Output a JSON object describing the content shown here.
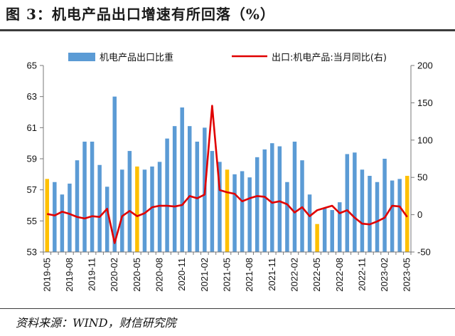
{
  "title": "图 3：机电产品出口增速有所回落（%）",
  "source": "资料来源：WIND，财信研究院",
  "colors": {
    "bar": "#5b9bd5",
    "highlight": "#ffc000",
    "line": "#e00000"
  },
  "chart_data": {
    "type": "bar+line",
    "categories": [
      "2019-05",
      "2019-06",
      "2019-07",
      "2019-08",
      "2019-09",
      "2019-10",
      "2019-11",
      "2019-12",
      "2020-01",
      "2020-02",
      "2020-03",
      "2020-04",
      "2020-05",
      "2020-06",
      "2020-07",
      "2020-08",
      "2020-09",
      "2020-10",
      "2020-11",
      "2020-12",
      "2021-01",
      "2021-02",
      "2021-03",
      "2021-04",
      "2021-05",
      "2021-06",
      "2021-07",
      "2021-08",
      "2021-09",
      "2021-10",
      "2021-11",
      "2021-12",
      "2022-01",
      "2022-02",
      "2022-03",
      "2022-04",
      "2022-05",
      "2022-06",
      "2022-07",
      "2022-08",
      "2022-09",
      "2022-10",
      "2022-11",
      "2022-12",
      "2023-01",
      "2023-02",
      "2023-03",
      "2023-04",
      "2023-05"
    ],
    "x_tick_labels": [
      "2019-05",
      "2019-08",
      "2019-11",
      "2020-02",
      "2020-05",
      "2020-08",
      "2020-11",
      "2021-02",
      "2021-05",
      "2021-08",
      "2021-11",
      "2022-02",
      "2022-05",
      "2022-08",
      "2022-11",
      "2023-02",
      "2023-05"
    ],
    "x_tick_every": 3,
    "highlight_categories": [
      "2019-05",
      "2020-05",
      "2021-05",
      "2022-05",
      "2023-05"
    ],
    "series": [
      {
        "name": "机电产品出口比重",
        "type": "bar",
        "axis": "left",
        "values": [
          57.7,
          57.5,
          56.7,
          57.4,
          58.9,
          60.1,
          60.1,
          58.6,
          57.2,
          63.0,
          58.3,
          59.5,
          58.5,
          58.3,
          58.5,
          58.8,
          60.3,
          61.1,
          62.3,
          61.1,
          60.1,
          61.0,
          59.5,
          58.8,
          58.3,
          58.0,
          58.2,
          57.8,
          59.1,
          59.6,
          60.0,
          59.8,
          57.5,
          60.1,
          58.9,
          56.7,
          54.8,
          55.8,
          55.7,
          56.2,
          59.3,
          59.4,
          58.3,
          57.9,
          57.5,
          59.0,
          57.6,
          57.7,
          57.9
        ]
      },
      {
        "name": "出口:机电产品:当月同比(右)",
        "type": "line",
        "axis": "right",
        "values": [
          1,
          -1,
          4,
          1,
          -3,
          -5,
          -2,
          -3,
          8,
          -38,
          -2,
          5,
          -2,
          2,
          10,
          12,
          12,
          11,
          13,
          25,
          22,
          27,
          146,
          33,
          30,
          28,
          18,
          22,
          25,
          24,
          16,
          18,
          14,
          3,
          10,
          -2,
          6,
          9,
          12,
          2,
          6,
          -4,
          -12,
          -13,
          -9,
          -4,
          12,
          11,
          -3
        ]
      }
    ],
    "y_left": {
      "min": 53,
      "max": 65,
      "ticks": [
        53,
        55,
        57,
        59,
        61,
        63,
        65
      ]
    },
    "y_right": {
      "min": -50,
      "max": 200,
      "ticks": [
        -50,
        0,
        50,
        100,
        150,
        200
      ]
    },
    "legend_position": "top",
    "grid": false
  }
}
